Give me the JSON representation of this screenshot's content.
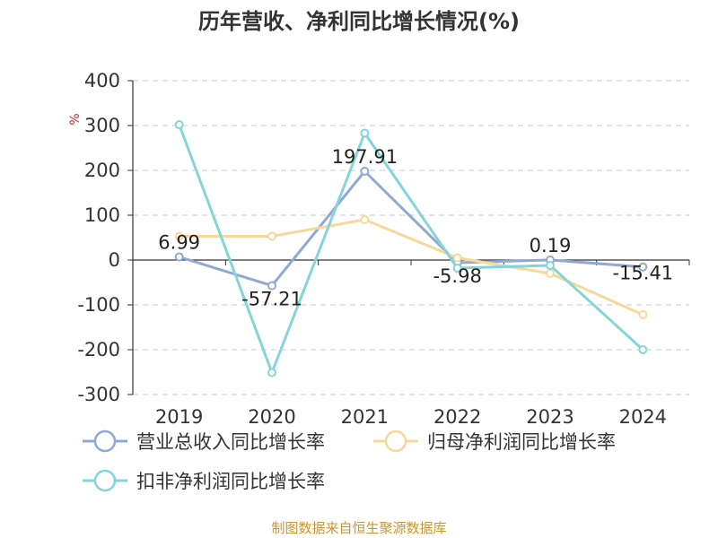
{
  "chart_data": {
    "type": "line",
    "title": "历年营收、净利同比增长情况(%)",
    "unit": "%",
    "categories": [
      "2019",
      "2020",
      "2021",
      "2022",
      "2023",
      "2024"
    ],
    "ylim": [
      -300,
      400
    ],
    "yticks": [
      400,
      300,
      200,
      100,
      0,
      -100,
      -200,
      -300
    ],
    "grid": true,
    "legend_position": "bottom-left",
    "series": [
      {
        "name": "营业总收入同比增长率",
        "color": "#8fa9d4",
        "values": [
          6.99,
          -57.21,
          197.91,
          -5.98,
          0.19,
          -15.41
        ],
        "labels": [
          "6.99",
          "-57.21",
          "197.91",
          "-5.98",
          "0.19",
          "-15.41"
        ]
      },
      {
        "name": "归母净利润同比增长率",
        "color": "#f8d89a",
        "values": [
          53,
          53,
          90,
          5,
          -30,
          -122
        ]
      },
      {
        "name": "扣非净利润同比增长率",
        "color": "#84d4d8",
        "values": [
          302,
          -251,
          283,
          -18,
          -12,
          -200
        ]
      }
    ],
    "source": "制图数据来自恒生聚源数据库"
  }
}
